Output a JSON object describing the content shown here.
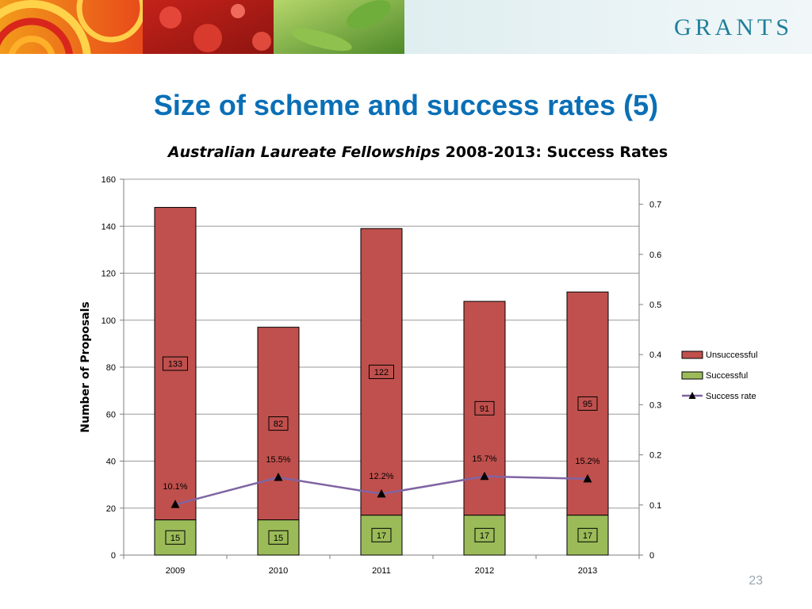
{
  "header": {
    "brand": "GRANTS"
  },
  "slide": {
    "title": "Size of scheme and success rates (5)",
    "page_number": "23"
  },
  "chart_data": {
    "type": "bar",
    "stacked": true,
    "title_italic": "Australian Laureate Fellowships",
    "title_rest": " 2008-2013: Success Rates",
    "ylabel": "Number of Proposals",
    "categories": [
      "2009",
      "2010",
      "2011",
      "2012",
      "2013"
    ],
    "ylim": [
      0,
      160
    ],
    "y_ticks": [
      0,
      20,
      40,
      60,
      80,
      100,
      120,
      140,
      160
    ],
    "y2lim": [
      0,
      0.75
    ],
    "y2_ticks": [
      0,
      0.1,
      0.2,
      0.3,
      0.4,
      0.5,
      0.6,
      0.7
    ],
    "series": [
      {
        "name": "Successful",
        "type": "bar",
        "color": "#9bbb59",
        "values": [
          15,
          15,
          17,
          17,
          17
        ]
      },
      {
        "name": "Unsuccessful",
        "type": "bar",
        "color": "#c0504d",
        "values": [
          133,
          82,
          122,
          91,
          95
        ]
      },
      {
        "name": "Success rate",
        "type": "line",
        "axis": "secondary",
        "color": "#8064a2",
        "values": [
          0.101,
          0.155,
          0.122,
          0.157,
          0.152
        ],
        "labels": [
          "10.1%",
          "15.5%",
          "12.2%",
          "15.7%",
          "15.2%"
        ]
      }
    ],
    "legend": [
      "Unsuccessful",
      "Successful",
      "Success rate"
    ],
    "legend_position": "right",
    "grid": true
  }
}
